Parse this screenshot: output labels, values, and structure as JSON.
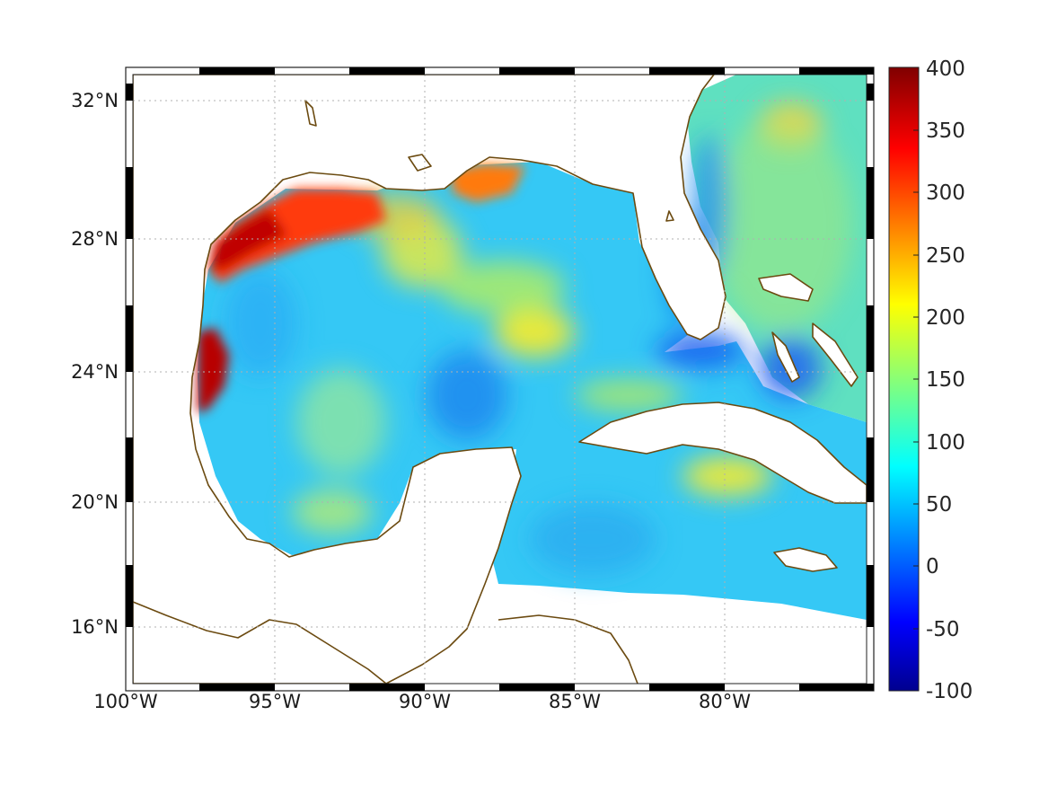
{
  "map": {
    "lon_ticks": [
      "100°W",
      "95°W",
      "90°W",
      "85°W",
      "80°W"
    ],
    "lat_ticks": [
      "32°N",
      "28°N",
      "24°N",
      "20°N",
      "16°N"
    ],
    "grid": true,
    "frame_style": "alternating black-white border",
    "coastline_color": "#6b4a10",
    "land_color": "#ffffff"
  },
  "colorbar": {
    "ticks": [
      "400",
      "350",
      "300",
      "250",
      "200",
      "150",
      "100",
      "50",
      "0",
      "-50",
      "-100"
    ],
    "range": [
      -100,
      400
    ],
    "colormap": "jet",
    "colors": [
      "#00008f",
      "#0000ff",
      "#00ffff",
      "#ffff00",
      "#ff0000",
      "#800000"
    ]
  }
}
